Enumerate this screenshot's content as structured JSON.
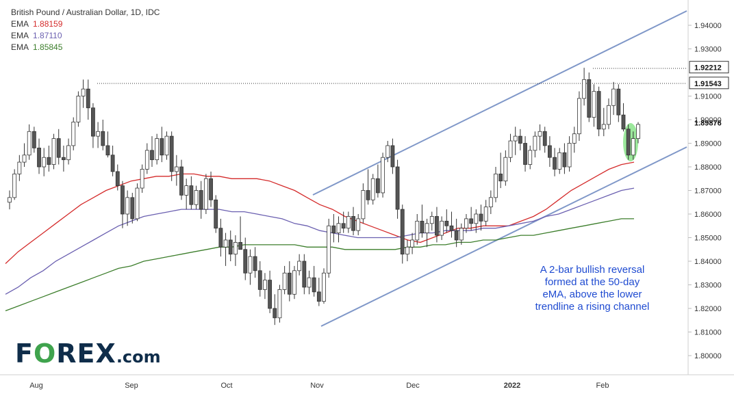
{
  "legend": {
    "title": "British Pound / Australian Dollar, 1D, IDC",
    "ema1_label": "EMA",
    "ema1_value": "1.88159",
    "ema2_label": "EMA",
    "ema2_value": "1.87110",
    "ema3_label": "EMA",
    "ema3_value": "1.85845"
  },
  "annotation": {
    "text_line1": "A 2-bar bullish reversal",
    "text_line2": "formed at the 50-day",
    "text_line3": "eMA, above the lower",
    "text_line4": "trendline a rising channel"
  },
  "logo": {
    "part1": "F",
    "part2": "O",
    "part3": "REX",
    "part4": ".com"
  },
  "colors": {
    "up_candle": "#ffffff",
    "down_candle": "#555555",
    "wick": "#333333",
    "ema_50": "#d42a2a",
    "ema_100": "#6a5fb0",
    "ema_200": "#3b7d2a",
    "channel": "#7f97c8",
    "highlight": "#7be07b",
    "annotation": "#1f4bd1"
  },
  "chart_data": {
    "type": "candlestick",
    "title": "British Pound / Australian Dollar, 1D, IDC",
    "ylim": [
      1.795,
      1.95
    ],
    "y_ticks": [
      "1.94000",
      "1.93000",
      "1.91000",
      "1.90000",
      "1.89000",
      "1.88000",
      "1.87000",
      "1.86000",
      "1.85000",
      "1.84000",
      "1.83000",
      "1.82000",
      "1.81000",
      "1.80000"
    ],
    "x_ticks": [
      "Aug",
      "Sep",
      "Oct",
      "Nov",
      "Dec",
      "2022",
      "Feb"
    ],
    "price_labels": [
      {
        "value": 1.92212,
        "text": "1.92212",
        "style": "boxed"
      },
      {
        "value": 1.91543,
        "text": "1.91543",
        "style": "boxed"
      },
      {
        "value": 1.89876,
        "text": "1.89876",
        "style": "plain"
      }
    ],
    "horizontal_levels": [
      1.92212,
      1.91543
    ],
    "candles": [
      [
        1.865,
        1.87,
        1.862,
        1.867
      ],
      [
        1.867,
        1.879,
        1.866,
        1.877
      ],
      [
        1.877,
        1.885,
        1.874,
        1.882
      ],
      [
        1.882,
        1.89,
        1.88,
        1.885
      ],
      [
        1.885,
        1.898,
        1.883,
        1.895
      ],
      [
        1.895,
        1.897,
        1.886,
        1.888
      ],
      [
        1.888,
        1.892,
        1.877,
        1.88
      ],
      [
        1.88,
        1.888,
        1.876,
        1.884
      ],
      [
        1.884,
        1.889,
        1.878,
        1.881
      ],
      [
        1.881,
        1.894,
        1.879,
        1.892
      ],
      [
        1.892,
        1.896,
        1.881,
        1.884
      ],
      [
        1.884,
        1.889,
        1.878,
        1.883
      ],
      [
        1.883,
        1.892,
        1.881,
        1.889
      ],
      [
        1.889,
        1.901,
        1.887,
        1.899
      ],
      [
        1.899,
        1.912,
        1.897,
        1.91
      ],
      [
        1.91,
        1.917,
        1.905,
        1.913
      ],
      [
        1.913,
        1.917,
        1.9,
        1.905
      ],
      [
        1.905,
        1.907,
        1.888,
        1.893
      ],
      [
        1.893,
        1.899,
        1.888,
        1.895
      ],
      [
        1.895,
        1.9,
        1.887,
        1.889
      ],
      [
        1.889,
        1.895,
        1.884,
        1.885
      ],
      [
        1.885,
        1.889,
        1.876,
        1.878
      ],
      [
        1.878,
        1.881,
        1.87,
        1.872
      ],
      [
        1.872,
        1.874,
        1.854,
        1.86
      ],
      [
        1.86,
        1.87,
        1.855,
        1.867
      ],
      [
        1.867,
        1.869,
        1.856,
        1.858
      ],
      [
        1.858,
        1.873,
        1.857,
        1.871
      ],
      [
        1.871,
        1.881,
        1.869,
        1.879
      ],
      [
        1.879,
        1.89,
        1.877,
        1.887
      ],
      [
        1.887,
        1.893,
        1.88,
        1.883
      ],
      [
        1.883,
        1.894,
        1.881,
        1.892
      ],
      [
        1.892,
        1.897,
        1.882,
        1.885
      ],
      [
        1.885,
        1.895,
        1.883,
        1.893
      ],
      [
        1.893,
        1.895,
        1.874,
        1.878
      ],
      [
        1.878,
        1.885,
        1.872,
        1.88
      ],
      [
        1.88,
        1.883,
        1.866,
        1.868
      ],
      [
        1.868,
        1.875,
        1.862,
        1.872
      ],
      [
        1.872,
        1.876,
        1.862,
        1.864
      ],
      [
        1.864,
        1.872,
        1.862,
        1.87
      ],
      [
        1.87,
        1.874,
        1.858,
        1.862
      ],
      [
        1.862,
        1.877,
        1.86,
        1.875
      ],
      [
        1.875,
        1.878,
        1.863,
        1.866
      ],
      [
        1.866,
        1.868,
        1.852,
        1.854
      ],
      [
        1.854,
        1.858,
        1.842,
        1.846
      ],
      [
        1.846,
        1.852,
        1.838,
        1.849
      ],
      [
        1.849,
        1.853,
        1.84,
        1.843
      ],
      [
        1.843,
        1.851,
        1.838,
        1.848
      ],
      [
        1.848,
        1.859,
        1.846,
        1.845
      ],
      [
        1.845,
        1.85,
        1.832,
        1.835
      ],
      [
        1.835,
        1.845,
        1.83,
        1.842
      ],
      [
        1.842,
        1.846,
        1.833,
        1.836
      ],
      [
        1.836,
        1.84,
        1.825,
        1.828
      ],
      [
        1.828,
        1.835,
        1.824,
        1.832
      ],
      [
        1.832,
        1.836,
        1.818,
        1.82
      ],
      [
        1.82,
        1.826,
        1.813,
        1.816
      ],
      [
        1.816,
        1.83,
        1.814,
        1.828
      ],
      [
        1.828,
        1.838,
        1.826,
        1.835
      ],
      [
        1.835,
        1.84,
        1.823,
        1.826
      ],
      [
        1.826,
        1.838,
        1.824,
        1.836
      ],
      [
        1.836,
        1.843,
        1.834,
        1.84
      ],
      [
        1.84,
        1.843,
        1.826,
        1.829
      ],
      [
        1.829,
        1.836,
        1.826,
        1.833
      ],
      [
        1.833,
        1.838,
        1.825,
        1.827
      ],
      [
        1.827,
        1.833,
        1.821,
        1.823
      ],
      [
        1.823,
        1.837,
        1.822,
        1.835
      ],
      [
        1.835,
        1.858,
        1.833,
        1.855
      ],
      [
        1.855,
        1.86,
        1.848,
        1.852
      ],
      [
        1.852,
        1.859,
        1.848,
        1.856
      ],
      [
        1.856,
        1.861,
        1.852,
        1.854
      ],
      [
        1.854,
        1.861,
        1.852,
        1.859
      ],
      [
        1.859,
        1.863,
        1.851,
        1.853
      ],
      [
        1.853,
        1.86,
        1.851,
        1.858
      ],
      [
        1.858,
        1.873,
        1.856,
        1.87
      ],
      [
        1.87,
        1.879,
        1.864,
        1.866
      ],
      [
        1.866,
        1.877,
        1.864,
        1.875
      ],
      [
        1.875,
        1.881,
        1.867,
        1.869
      ],
      [
        1.869,
        1.886,
        1.867,
        1.884
      ],
      [
        1.884,
        1.891,
        1.882,
        1.889
      ],
      [
        1.889,
        1.892,
        1.877,
        1.88
      ],
      [
        1.88,
        1.883,
        1.858,
        1.862
      ],
      [
        1.862,
        1.864,
        1.839,
        1.843
      ],
      [
        1.843,
        1.849,
        1.84,
        1.846
      ],
      [
        1.846,
        1.852,
        1.843,
        1.849
      ],
      [
        1.849,
        1.86,
        1.847,
        1.857
      ],
      [
        1.857,
        1.864,
        1.85,
        1.852
      ],
      [
        1.852,
        1.858,
        1.846,
        1.856
      ],
      [
        1.856,
        1.861,
        1.853,
        1.859
      ],
      [
        1.859,
        1.863,
        1.848,
        1.851
      ],
      [
        1.851,
        1.859,
        1.849,
        1.857
      ],
      [
        1.857,
        1.862,
        1.852,
        1.855
      ],
      [
        1.855,
        1.861,
        1.85,
        1.853
      ],
      [
        1.853,
        1.858,
        1.846,
        1.849
      ],
      [
        1.849,
        1.856,
        1.847,
        1.854
      ],
      [
        1.854,
        1.86,
        1.852,
        1.858
      ],
      [
        1.858,
        1.863,
        1.853,
        1.856
      ],
      [
        1.856,
        1.862,
        1.852,
        1.86
      ],
      [
        1.86,
        1.864,
        1.853,
        1.857
      ],
      [
        1.857,
        1.866,
        1.855,
        1.863
      ],
      [
        1.863,
        1.87,
        1.86,
        1.867
      ],
      [
        1.867,
        1.88,
        1.865,
        1.877
      ],
      [
        1.877,
        1.886,
        1.871,
        1.874
      ],
      [
        1.874,
        1.887,
        1.872,
        1.884
      ],
      [
        1.884,
        1.894,
        1.882,
        1.891
      ],
      [
        1.891,
        1.897,
        1.885,
        1.893
      ],
      [
        1.893,
        1.896,
        1.887,
        1.89
      ],
      [
        1.89,
        1.893,
        1.878,
        1.881
      ],
      [
        1.881,
        1.889,
        1.879,
        1.887
      ],
      [
        1.887,
        1.895,
        1.884,
        1.893
      ],
      [
        1.893,
        1.898,
        1.887,
        1.895
      ],
      [
        1.895,
        1.897,
        1.886,
        1.889
      ],
      [
        1.889,
        1.893,
        1.88,
        1.884
      ],
      [
        1.884,
        1.888,
        1.876,
        1.879
      ],
      [
        1.879,
        1.888,
        1.877,
        1.886
      ],
      [
        1.886,
        1.89,
        1.877,
        1.88
      ],
      [
        1.88,
        1.893,
        1.878,
        1.89
      ],
      [
        1.89,
        1.897,
        1.886,
        1.894
      ],
      [
        1.894,
        1.912,
        1.891,
        1.909
      ],
      [
        1.909,
        1.922,
        1.906,
        1.917
      ],
      [
        1.917,
        1.92,
        1.899,
        1.901
      ],
      [
        1.901,
        1.915,
        1.897,
        1.912
      ],
      [
        1.912,
        1.914,
        1.893,
        1.896
      ],
      [
        1.896,
        1.905,
        1.893,
        1.898
      ],
      [
        1.898,
        1.909,
        1.896,
        1.906
      ],
      [
        1.906,
        1.916,
        1.902,
        1.913
      ],
      [
        1.913,
        1.915,
        1.899,
        1.902
      ],
      [
        1.902,
        1.907,
        1.895,
        1.896
      ],
      [
        1.896,
        1.898,
        1.883,
        1.885
      ],
      [
        1.885,
        1.895,
        1.883,
        1.892
      ],
      [
        1.892,
        1.899,
        1.89,
        1.898
      ]
    ],
    "series": [
      {
        "name": "EMA",
        "period": 50,
        "value": 1.88159,
        "values": [
          1.839,
          1.844,
          1.848,
          1.852,
          1.856,
          1.86,
          1.864,
          1.867,
          1.87,
          1.872,
          1.874,
          1.875,
          1.876,
          1.876,
          1.877,
          1.877,
          1.876,
          1.876,
          1.875,
          1.875,
          1.875,
          1.874,
          1.872,
          1.87,
          1.867,
          1.864,
          1.862,
          1.859,
          1.857,
          1.855,
          1.853,
          1.851,
          1.849,
          1.848,
          1.85,
          1.852,
          1.854,
          1.854,
          1.855,
          1.855,
          1.855,
          1.857,
          1.859,
          1.862,
          1.866,
          1.87,
          1.873,
          1.876,
          1.879,
          1.881,
          1.882
        ]
      },
      {
        "name": "EMA",
        "period": 100,
        "value": 1.8711,
        "values": [
          1.826,
          1.829,
          1.833,
          1.836,
          1.84,
          1.843,
          1.846,
          1.849,
          1.852,
          1.855,
          1.857,
          1.859,
          1.86,
          1.861,
          1.862,
          1.862,
          1.862,
          1.862,
          1.861,
          1.861,
          1.86,
          1.859,
          1.858,
          1.856,
          1.855,
          1.853,
          1.852,
          1.851,
          1.85,
          1.85,
          1.85,
          1.85,
          1.851,
          1.852,
          1.852,
          1.853,
          1.853,
          1.853,
          1.854,
          1.854,
          1.855,
          1.856,
          1.857,
          1.859,
          1.86,
          1.862,
          1.864,
          1.866,
          1.868,
          1.87,
          1.871
        ]
      },
      {
        "name": "EMA",
        "period": 200,
        "value": 1.85845,
        "values": [
          1.819,
          1.821,
          1.823,
          1.825,
          1.827,
          1.829,
          1.831,
          1.833,
          1.835,
          1.837,
          1.838,
          1.84,
          1.841,
          1.842,
          1.843,
          1.844,
          1.845,
          1.846,
          1.846,
          1.847,
          1.847,
          1.847,
          1.847,
          1.847,
          1.846,
          1.846,
          1.846,
          1.845,
          1.845,
          1.845,
          1.845,
          1.845,
          1.846,
          1.846,
          1.847,
          1.847,
          1.848,
          1.848,
          1.849,
          1.849,
          1.85,
          1.851,
          1.851,
          1.852,
          1.853,
          1.854,
          1.855,
          1.856,
          1.857,
          1.858,
          1.858
        ]
      }
    ],
    "grid": false
  }
}
